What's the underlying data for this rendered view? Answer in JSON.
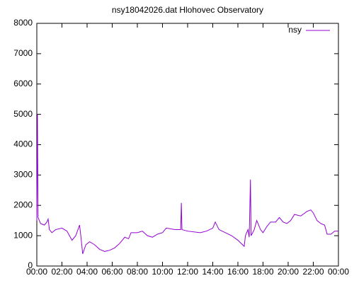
{
  "chart_data": {
    "type": "line",
    "title": "nsy18042026.dat Hlohovec Observatory",
    "x": [
      0,
      0.05,
      0.1,
      0.3,
      0.6,
      0.8,
      0.9,
      1.0,
      1.2,
      1.5,
      2.0,
      2.4,
      2.6,
      2.8,
      3.1,
      3.4,
      3.5,
      3.65,
      3.9,
      4.2,
      4.6,
      5.0,
      5.4,
      5.8,
      6.2,
      6.6,
      7.0,
      7.3,
      7.5,
      8.0,
      8.4,
      8.8,
      9.2,
      9.6,
      10.0,
      10.3,
      11.0,
      11.45,
      11.5,
      11.55,
      12.0,
      13.0,
      13.5,
      14.0,
      14.2,
      14.5,
      15.0,
      15.5,
      16.0,
      16.5,
      16.6,
      16.8,
      16.9,
      17.0,
      17.05,
      17.3,
      17.5,
      17.8,
      18.0,
      18.3,
      18.6,
      19.0,
      19.3,
      19.6,
      19.9,
      20.2,
      20.5,
      21.0,
      21.5,
      21.8,
      22.0,
      22.3,
      22.6,
      22.9,
      23.1,
      23.4,
      23.7,
      24.0
    ],
    "series": [
      {
        "name": "nsy",
        "color": "#9400d3",
        "values": [
          1500,
          5000,
          1600,
          1400,
          1350,
          1450,
          1550,
          1200,
          1100,
          1200,
          1250,
          1150,
          1000,
          850,
          1000,
          1350,
          1000,
          400,
          700,
          800,
          700,
          550,
          480,
          520,
          600,
          750,
          950,
          900,
          1100,
          1100,
          1150,
          1000,
          950,
          1050,
          1100,
          1250,
          1200,
          1200,
          2080,
          1200,
          1150,
          1100,
          1150,
          1250,
          1450,
          1200,
          1100,
          1000,
          850,
          650,
          1000,
          1200,
          950,
          2850,
          1000,
          1200,
          1500,
          1200,
          1100,
          1300,
          1450,
          1450,
          1600,
          1450,
          1400,
          1500,
          1700,
          1650,
          1800,
          1850,
          1750,
          1500,
          1400,
          1350,
          1050,
          1050,
          1150,
          1150
        ]
      }
    ],
    "xlim": [
      0,
      24
    ],
    "xticks": [
      {
        "value": 0,
        "label": "00:00"
      },
      {
        "value": 2,
        "label": "02:00"
      },
      {
        "value": 4,
        "label": "04:00"
      },
      {
        "value": 6,
        "label": "06:00"
      },
      {
        "value": 8,
        "label": "08:00"
      },
      {
        "value": 10,
        "label": "10:00"
      },
      {
        "value": 12,
        "label": "12:00"
      },
      {
        "value": 14,
        "label": "14:00"
      },
      {
        "value": 16,
        "label": "16:00"
      },
      {
        "value": 18,
        "label": "18:00"
      },
      {
        "value": 20,
        "label": "20:00"
      },
      {
        "value": 22,
        "label": "22:00"
      },
      {
        "value": 24,
        "label": "00:00"
      }
    ],
    "ylim": [
      0,
      8000
    ],
    "yticks": [
      0,
      1000,
      2000,
      3000,
      4000,
      5000,
      6000,
      7000,
      8000
    ],
    "grid": false,
    "legend": "top-right"
  }
}
